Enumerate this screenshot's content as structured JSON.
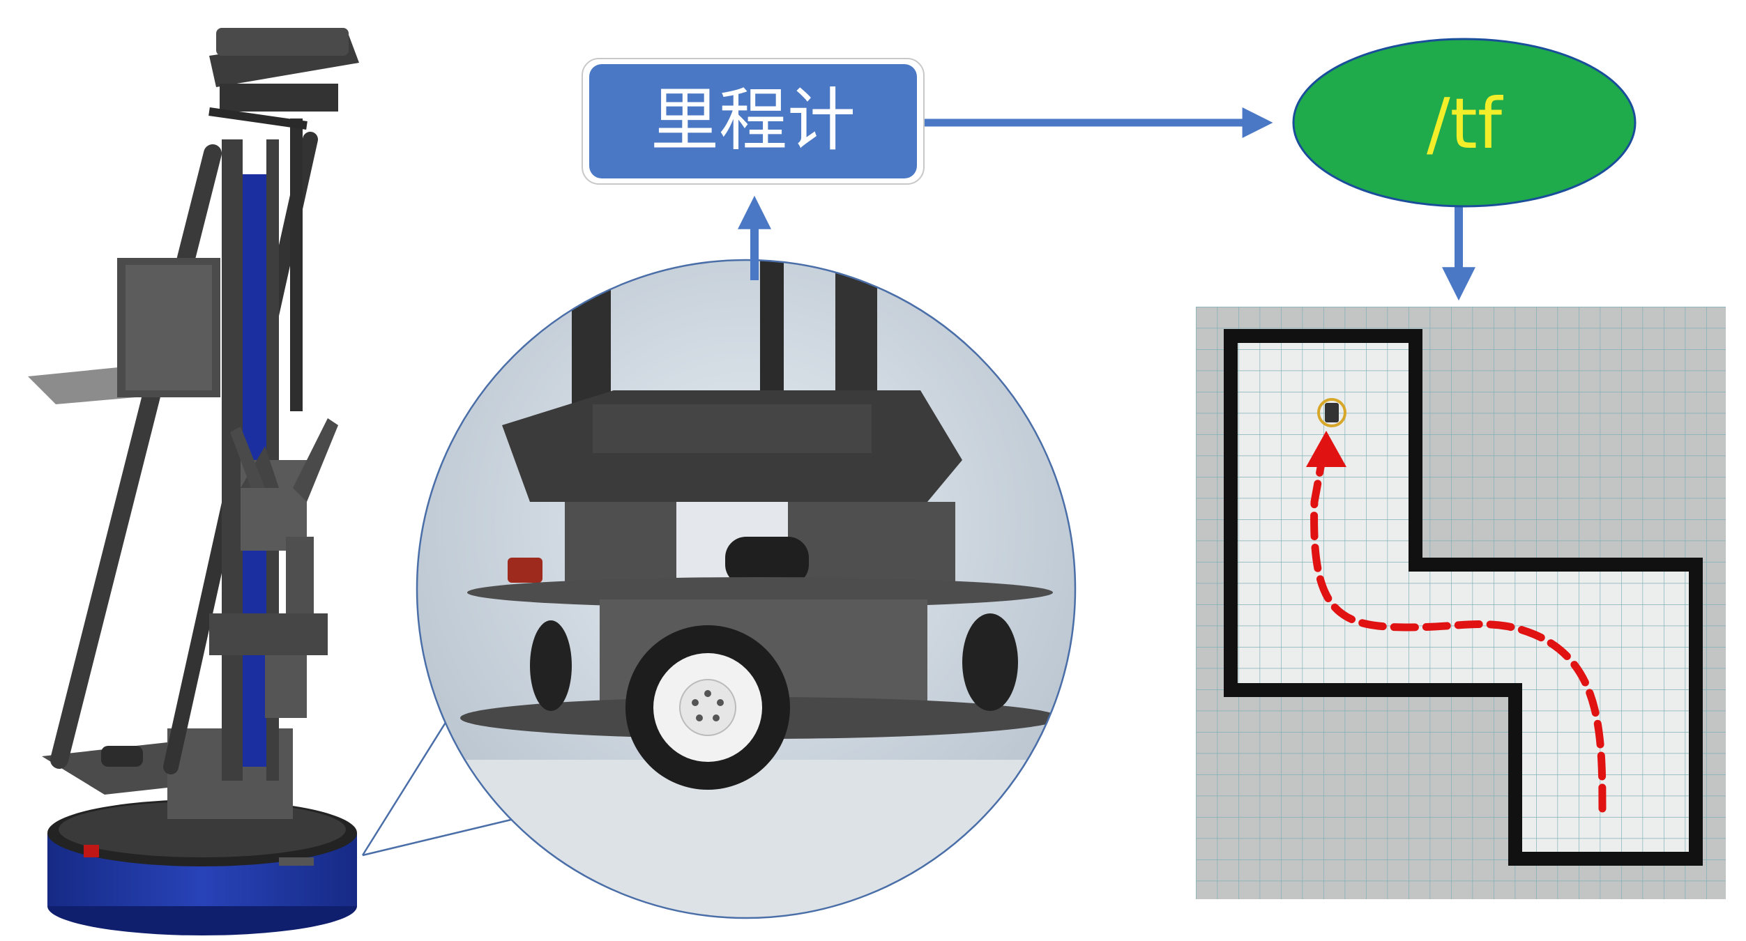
{
  "nodes": {
    "odometry": {
      "label": "里程计"
    },
    "tf": {
      "label": "/tf"
    }
  },
  "colors": {
    "box_fill": "#4a78c4",
    "arrow": "#4a78c4",
    "ellipse_fill": "#1faa4c",
    "tf_text": "#f2ef2a",
    "robot_blue": "#1f3aa8",
    "path": "#e11212",
    "wall": "#111111",
    "map_bg": "#c6c6c6",
    "map_free": "#e8eaea"
  },
  "map": {
    "cols": 24,
    "rows": 26
  }
}
